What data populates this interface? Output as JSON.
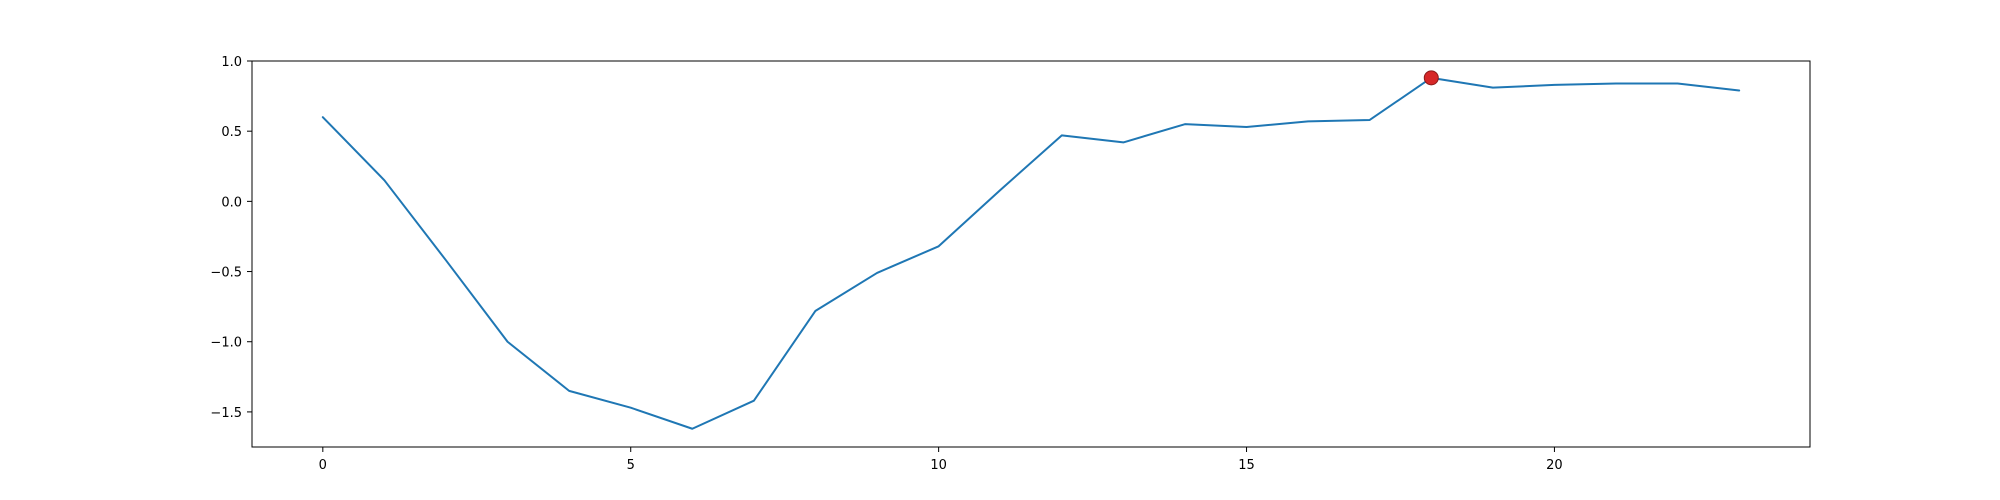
{
  "chart_data": {
    "type": "line",
    "title": "",
    "xlabel": "",
    "ylabel": "",
    "xlim": [
      -1.15,
      24.15
    ],
    "ylim": [
      -1.75,
      1.0
    ],
    "x_ticks": [
      {
        "value": 0,
        "label": "0"
      },
      {
        "value": 5,
        "label": "5"
      },
      {
        "value": 10,
        "label": "10"
      },
      {
        "value": 15,
        "label": "15"
      },
      {
        "value": 20,
        "label": "20"
      }
    ],
    "y_ticks": [
      {
        "value": 1.0,
        "label": "1.0"
      },
      {
        "value": 0.5,
        "label": "0.5"
      },
      {
        "value": 0.0,
        "label": "0.0"
      },
      {
        "value": -0.5,
        "label": "−0.5"
      },
      {
        "value": -1.0,
        "label": "−1.0"
      },
      {
        "value": -1.5,
        "label": "−1.5"
      }
    ],
    "grid": false,
    "series": [
      {
        "color": "#1f77b4",
        "x": [
          0,
          1,
          2,
          3,
          4,
          5,
          6,
          7,
          8,
          9,
          10,
          11,
          12,
          13,
          14,
          15,
          16,
          17,
          18,
          19,
          20,
          21,
          22,
          23
        ],
        "y": [
          0.6,
          0.15,
          -0.42,
          -1.0,
          -1.35,
          -1.47,
          -1.62,
          -1.42,
          -0.78,
          -0.51,
          -0.32,
          0.08,
          0.47,
          0.42,
          0.55,
          0.53,
          0.57,
          0.58,
          0.88,
          0.81,
          0.83,
          0.84,
          0.84,
          0.79
        ]
      }
    ],
    "highlight": {
      "x": 18,
      "y": 0.88,
      "color": "#d62728"
    }
  }
}
